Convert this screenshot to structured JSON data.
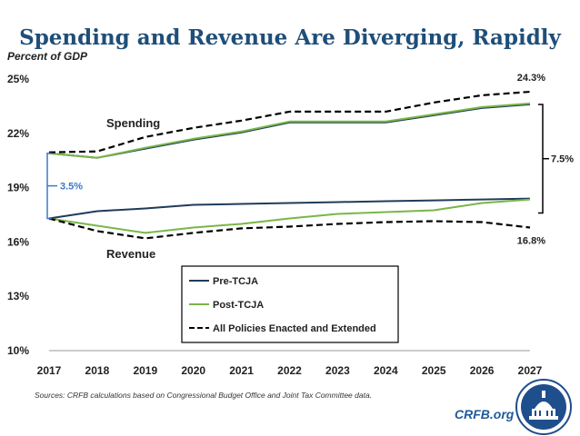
{
  "title": "Spending and Revenue Are Diverging, Rapidly",
  "source": "Sources: CRFB calculations based on Congressional Budget Office and Joint Tax Committee data.",
  "brand": "CRFB.org",
  "colors": {
    "title": "#1f4e79",
    "pre": "#1f3c5a",
    "post": "#7ab648",
    "dashed": "#000000",
    "gap": "#3c78c8"
  },
  "chart_data": {
    "type": "line",
    "ylabel": "Percent of GDP",
    "x": [
      2017,
      2018,
      2019,
      2020,
      2021,
      2022,
      2023,
      2024,
      2025,
      2026,
      2027
    ],
    "xticks": [
      "2017",
      "2018",
      "2019",
      "2020",
      "2021",
      "2022",
      "2023",
      "2024",
      "2025",
      "2026",
      "2027"
    ],
    "yticks": [
      "10%",
      "13%",
      "16%",
      "19%",
      "22%",
      "25%"
    ],
    "ytick_values": [
      10,
      13,
      16,
      19,
      22,
      25
    ],
    "ylim": [
      10,
      25
    ],
    "grid": false,
    "legend": {
      "position": "center",
      "entries": [
        "Pre-TCJA",
        "Post-TCJA",
        "All Policies Enacted and Extended"
      ]
    },
    "series": [
      {
        "name": "Pre-TCJA",
        "group": "spending",
        "style": "solid",
        "color": "#1f3c5a",
        "values": [
          20.9,
          20.65,
          21.15,
          21.65,
          22.05,
          22.6,
          22.6,
          22.6,
          23.0,
          23.4,
          23.6
        ]
      },
      {
        "name": "Pre-TCJA",
        "group": "revenue",
        "style": "solid",
        "color": "#1f3c5a",
        "values": [
          17.3,
          17.7,
          17.85,
          18.05,
          18.1,
          18.15,
          18.2,
          18.25,
          18.3,
          18.35,
          18.4
        ]
      },
      {
        "name": "Post-TCJA",
        "group": "spending",
        "style": "solid",
        "color": "#7ab648",
        "values": [
          20.9,
          20.65,
          21.2,
          21.7,
          22.1,
          22.65,
          22.65,
          22.65,
          23.05,
          23.45,
          23.65
        ]
      },
      {
        "name": "Post-TCJA",
        "group": "revenue",
        "style": "solid",
        "color": "#7ab648",
        "values": [
          17.3,
          16.9,
          16.5,
          16.8,
          17.0,
          17.3,
          17.55,
          17.65,
          17.75,
          18.15,
          18.35
        ]
      },
      {
        "name": "All Policies Enacted and Extended",
        "group": "spending",
        "style": "dashed",
        "color": "#000000",
        "values": [
          20.95,
          21.0,
          21.8,
          22.3,
          22.7,
          23.2,
          23.2,
          23.2,
          23.7,
          24.1,
          24.3
        ]
      },
      {
        "name": "All Policies Enacted and Extended",
        "group": "revenue",
        "style": "dashed",
        "color": "#000000",
        "values": [
          17.3,
          16.6,
          16.2,
          16.5,
          16.75,
          16.85,
          17.0,
          17.1,
          17.15,
          17.1,
          16.8
        ]
      }
    ],
    "annotations": {
      "spending_label": "Spending",
      "revenue_label": "Revenue",
      "gap_start": "3.5%",
      "gap_end": "7.5%",
      "spending_end": "24.3%",
      "revenue_end": "16.8%"
    }
  }
}
